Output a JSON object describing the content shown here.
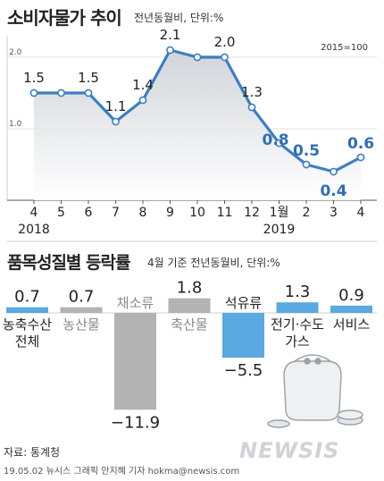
{
  "chart_data": [
    {
      "type": "line",
      "title": "소비자물가 추이",
      "subtitle": "전년동월비, 단위:%",
      "note": "2015=100",
      "x": [
        "4",
        "5",
        "6",
        "7",
        "8",
        "9",
        "10",
        "11",
        "12",
        "1월",
        "2",
        "3",
        "4"
      ],
      "year_labels": [
        "2018",
        "2019"
      ],
      "values": [
        1.5,
        1.5,
        1.5,
        1.1,
        1.4,
        2.1,
        2.0,
        2.0,
        1.3,
        0.8,
        0.5,
        0.4,
        0.6
      ],
      "data_labels": [
        "1.5",
        "",
        "1.5",
        "1.1",
        "1.4",
        "2.1",
        "",
        "2.0",
        "1.3",
        "0.8",
        "0.5",
        "0.4",
        "0.6"
      ],
      "y_ticks": [
        "2.0",
        "1.0"
      ],
      "ylim": [
        0,
        2.4
      ],
      "colors": {
        "line": "#3b7fc4",
        "highlight_text": "#2f6db5",
        "normal_text": "#222222"
      }
    },
    {
      "type": "bar",
      "title": "품목성질별 등락률",
      "subtitle": "4월 기준 전년동월비, 단위:%",
      "categories": [
        "농축수산 전체",
        "농산물",
        "채소류",
        "축산물",
        "석유류",
        "전기·수도 가스",
        "서비스"
      ],
      "category_lines": [
        [
          "농축수산",
          "전체"
        ],
        [
          "농산물"
        ],
        [
          "채소류"
        ],
        [
          "축산물"
        ],
        [
          "석유류"
        ],
        [
          "전기·수도",
          "가스"
        ],
        [
          "서비스"
        ]
      ],
      "values": [
        0.7,
        0.7,
        -11.9,
        1.8,
        -5.5,
        1.3,
        0.9
      ],
      "value_labels": [
        "0.7",
        "0.7",
        "−11.9",
        "1.8",
        "−5.5",
        "1.3",
        "0.9"
      ],
      "colors": {
        "blue": "#5aa9e0",
        "gray": "#b3b3b3",
        "gray_label": "#8a8a8a"
      },
      "bar_colors": [
        "blue",
        "gray",
        "gray",
        "gray",
        "blue",
        "blue",
        "blue"
      ]
    }
  ],
  "footer": {
    "source": "자료: 통계청",
    "credit": "19.05.02 뉴시스 그래픽 안지혜 기자 hokma@newsis.com",
    "watermark": "NEWSIS"
  }
}
